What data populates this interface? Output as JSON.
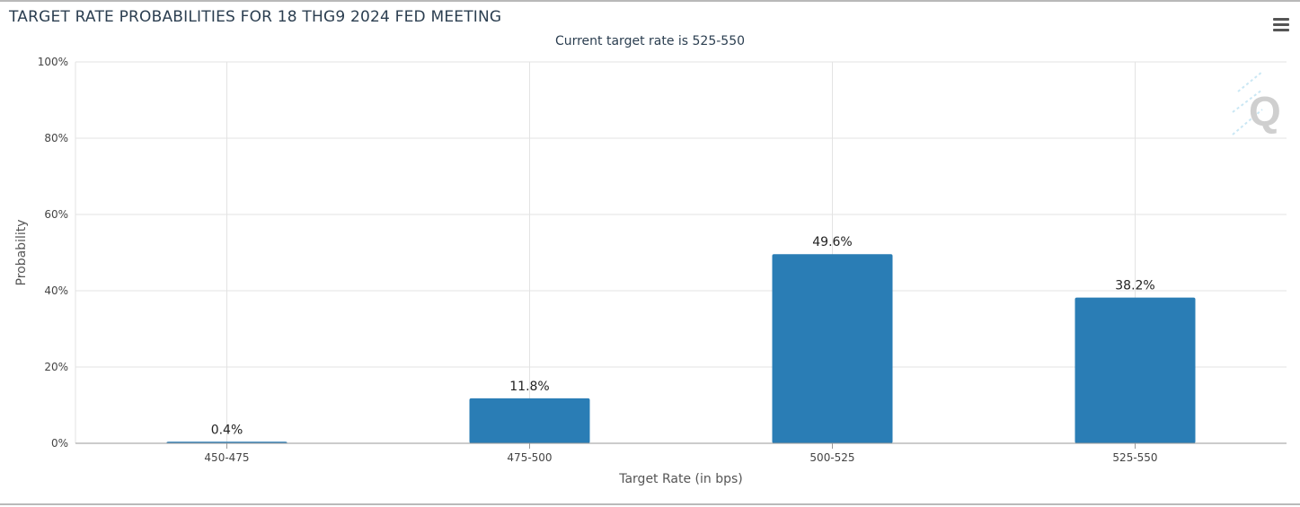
{
  "chart_data": {
    "type": "bar",
    "title": "TARGET RATE PROBABILITIES FOR 18 THG9 2024 FED MEETING",
    "subtitle": "Current target rate is 525-550",
    "xlabel": "Target Rate (in bps)",
    "ylabel": "Probability",
    "categories": [
      "450-475",
      "475-500",
      "500-525",
      "525-550"
    ],
    "values": [
      0.4,
      11.8,
      49.6,
      38.2
    ],
    "data_labels": [
      "0.4%",
      "11.8%",
      "49.6%",
      "38.2%"
    ],
    "yticks": [
      "0%",
      "20%",
      "40%",
      "60%",
      "80%",
      "100%"
    ],
    "ylim": [
      0,
      100
    ],
    "grid": true,
    "bar_color": "#2a7db5",
    "watermark": "Q"
  },
  "menu": {
    "icon": "hamburger-menu-icon"
  }
}
